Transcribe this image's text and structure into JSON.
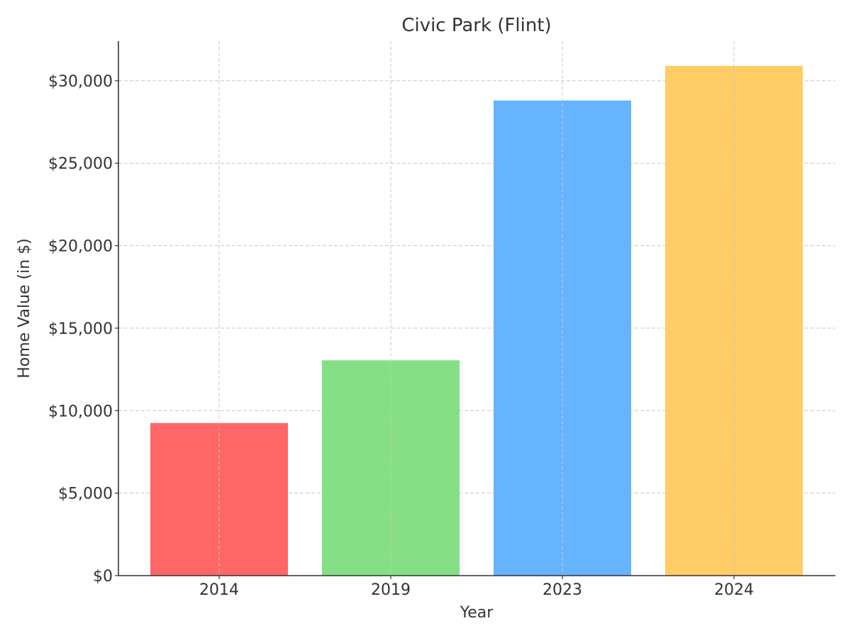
{
  "chart_data": {
    "type": "bar",
    "title": "Civic Park (Flint)",
    "xlabel": "Year",
    "ylabel": "Home Value (in $)",
    "categories": [
      "2014",
      "2019",
      "2023",
      "2024"
    ],
    "values": [
      9250,
      13050,
      28800,
      30900
    ],
    "colors": [
      "#ff6666",
      "#85e085",
      "#66b3ff",
      "#ffcc66"
    ],
    "ylim": [
      0,
      32400
    ],
    "yticks": [
      0,
      5000,
      10000,
      15000,
      20000,
      25000,
      30000
    ],
    "ytick_labels": [
      "$0",
      "$5,000",
      "$10,000",
      "$15,000",
      "$20,000",
      "$25,000",
      "$30,000"
    ],
    "grid": true,
    "legend": "none"
  }
}
